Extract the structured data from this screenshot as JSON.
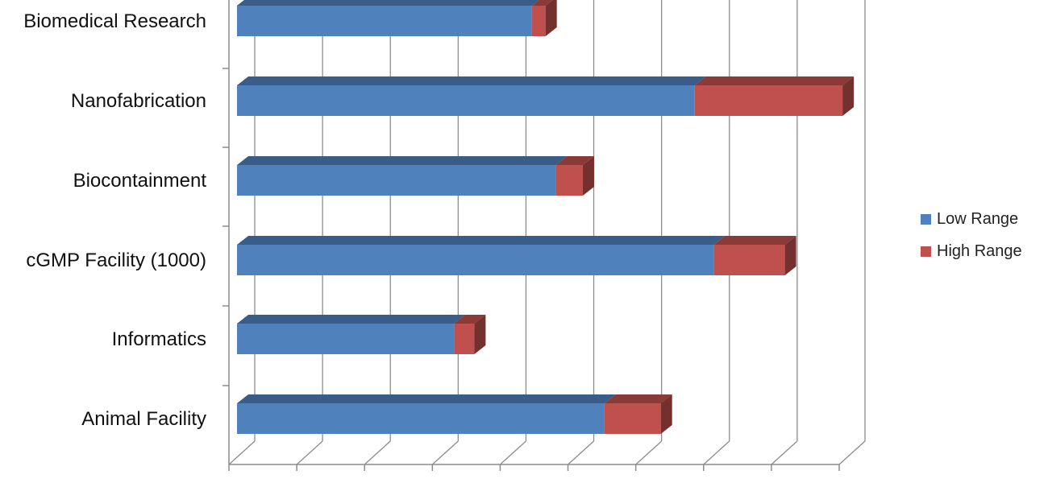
{
  "chart_data": {
    "type": "bar",
    "stacked": true,
    "orientation": "horizontal",
    "three_d": true,
    "categories": [
      "Biomedical Research",
      "Nanofabrication",
      "Biocontainment",
      "cGMP Facility (1000)",
      "Informatics",
      "Animal Facility"
    ],
    "series": [
      {
        "name": "Low Range",
        "values": [
          435,
          675,
          470,
          703,
          320,
          542
        ],
        "color": "#4F81BD"
      },
      {
        "name": "High Range",
        "values": [
          20,
          218,
          40,
          105,
          30,
          83
        ],
        "color": "#C0504D"
      }
    ],
    "x_range": [
      0,
      900
    ],
    "x_ticks": [
      0,
      100,
      200,
      300,
      400,
      500,
      600,
      700,
      800,
      900
    ],
    "grid": true,
    "legend_position": "right"
  },
  "legend": {
    "low_label": "Low Range",
    "high_label": "High Range"
  }
}
